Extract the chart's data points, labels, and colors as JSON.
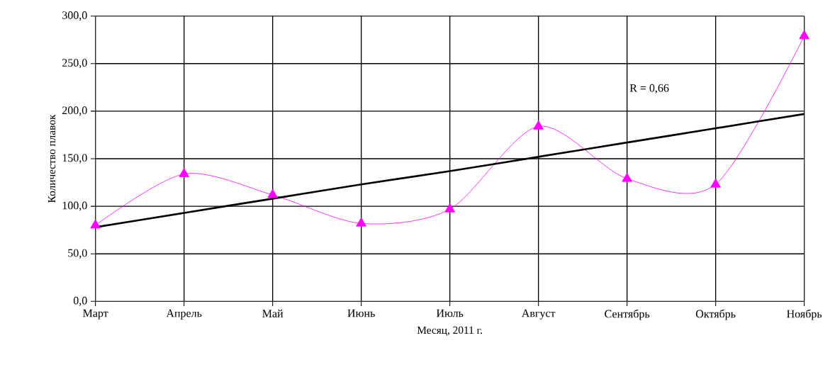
{
  "chart_data": {
    "type": "line",
    "xlabel": "Месяц, 2011 г.",
    "ylabel": "Количество плавок",
    "categories": [
      "Март",
      "Апрель",
      "Май",
      "Июнь",
      "Июль",
      "Август",
      "Сентябрь",
      "Октябрь",
      "Ноябрь"
    ],
    "series": [
      {
        "color": "#ff00ff",
        "marker": "triangle",
        "values": [
          80,
          134,
          112,
          82,
          97,
          184,
          129,
          123,
          279
        ]
      },
      {
        "color": "#000000",
        "marker": "none",
        "values": [
          78,
          93,
          108,
          123,
          137,
          152,
          167,
          182,
          197
        ]
      }
    ],
    "ylim": [
      0,
      300
    ],
    "yticks": [
      {
        "value": 0,
        "label": "0,0"
      },
      {
        "value": 50,
        "label": "50,0"
      },
      {
        "value": 100,
        "label": "100,0"
      },
      {
        "value": 150,
        "label": "150,0"
      },
      {
        "value": 200,
        "label": "200,0"
      },
      {
        "value": 250,
        "label": "250,0"
      },
      {
        "value": 300,
        "label": "300,0"
      }
    ],
    "grid": true,
    "annotations": [
      "R = 0,66"
    ]
  }
}
